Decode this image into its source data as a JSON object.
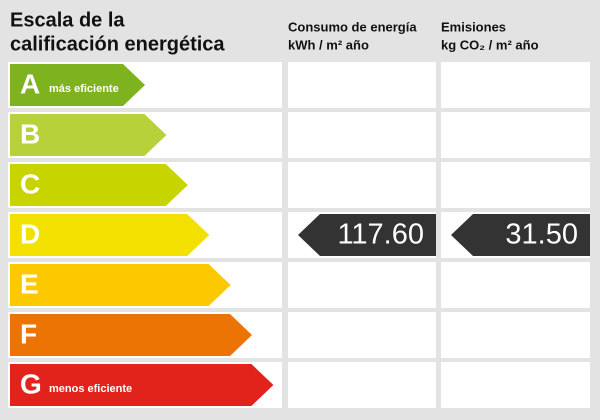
{
  "title": [
    "Escala de la",
    "calificación energética"
  ],
  "columns": [
    {
      "title": "Consumo de energía",
      "unit": "kWh / m² año"
    },
    {
      "title": "Emisiones",
      "unit": "kg CO₂ / m² año"
    }
  ],
  "scale": [
    {
      "letter": "A",
      "note": "más eficiente",
      "color": "#7fb21f"
    },
    {
      "letter": "B",
      "color": "#b7d13a"
    },
    {
      "letter": "C",
      "color": "#c8d400"
    },
    {
      "letter": "D",
      "color": "#f2e100"
    },
    {
      "letter": "E",
      "color": "#fcc800"
    },
    {
      "letter": "F",
      "color": "#ec7404"
    },
    {
      "letter": "G",
      "note": "menos eficiente",
      "color": "#e2231c"
    }
  ],
  "rating": {
    "letter": "D",
    "values": [
      "117.60",
      "31.50"
    ]
  }
}
